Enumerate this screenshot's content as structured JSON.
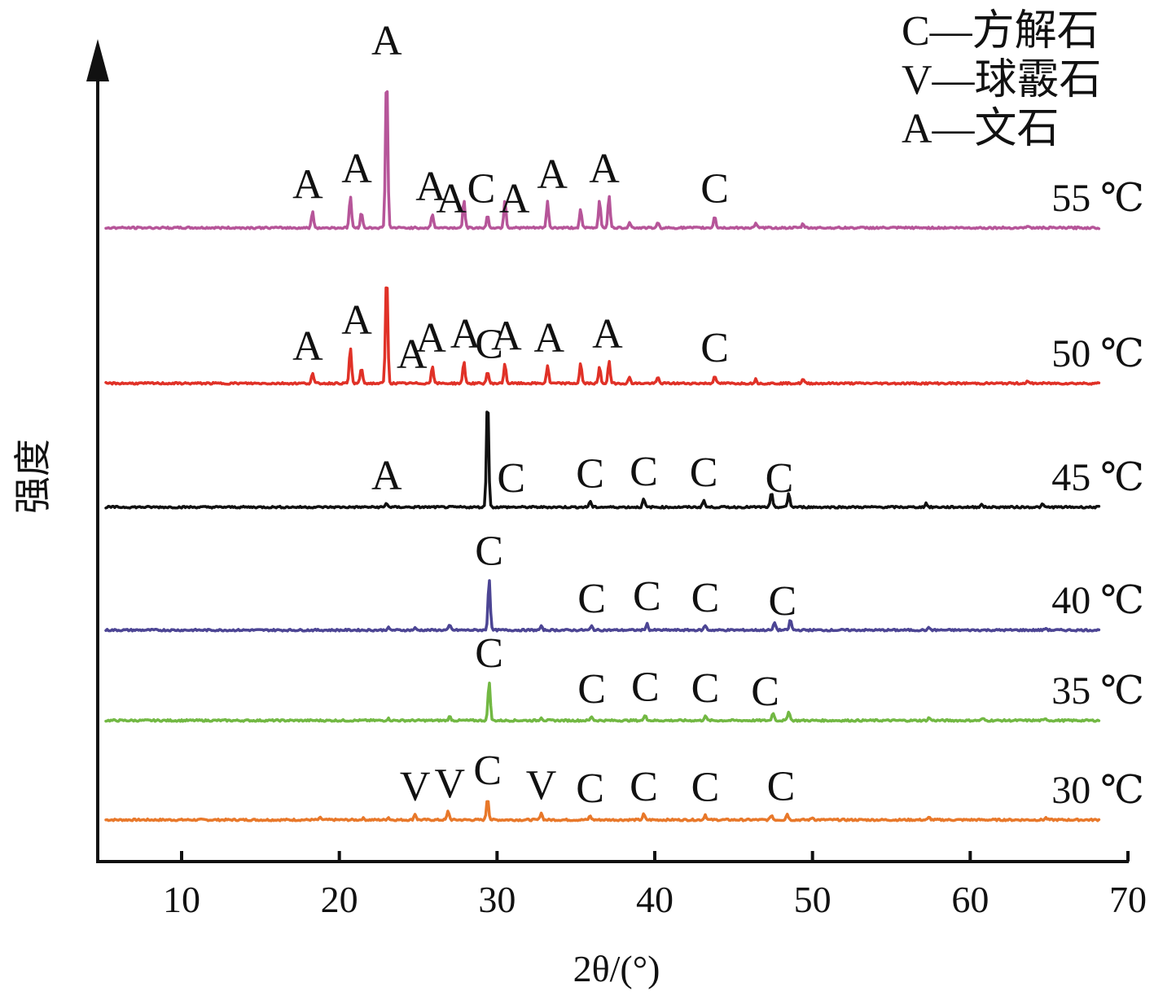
{
  "chart_data": {
    "type": "line",
    "title": "",
    "xlabel": "2θ/(°)",
    "ylabel": "强度",
    "xlim": [
      5,
      70
    ],
    "xticks": [
      10,
      20,
      30,
      40,
      50,
      60,
      70
    ],
    "legend": {
      "placement": "top-right",
      "entries": [
        "C—方解石",
        "V—球霰石",
        "A—文石"
      ]
    },
    "series": [
      {
        "name": "30 ℃",
        "color": "#e8782a",
        "peaks": [
          [
            18.8,
            0.5
          ],
          [
            21.5,
            0.4
          ],
          [
            23.1,
            0.6
          ],
          [
            24.8,
            1.5
          ],
          [
            26.9,
            2.2
          ],
          [
            29.4,
            5.5
          ],
          [
            32.8,
            1.8
          ],
          [
            35.9,
            1.0
          ],
          [
            39.3,
            1.4
          ],
          [
            43.2,
            1.3
          ],
          [
            47.4,
            1.2
          ],
          [
            48.4,
            1.5
          ],
          [
            50.0,
            0.6
          ],
          [
            57.4,
            0.6
          ],
          [
            64.8,
            0.5
          ]
        ],
        "labels": [
          {
            "x": 24.8,
            "text": "V"
          },
          {
            "x": 27.0,
            "text": "V"
          },
          {
            "x": 29.4,
            "text": "C"
          },
          {
            "x": 32.8,
            "text": "V"
          },
          {
            "x": 35.9,
            "text": "C"
          },
          {
            "x": 39.3,
            "text": "C"
          },
          {
            "x": 43.2,
            "text": "C"
          },
          {
            "x": 48.0,
            "text": "C"
          }
        ]
      },
      {
        "name": "35 ℃",
        "color": "#72b843",
        "peaks": [
          [
            23.1,
            0.5
          ],
          [
            27.0,
            1.0
          ],
          [
            29.5,
            10.0
          ],
          [
            32.8,
            0.8
          ],
          [
            36.0,
            1.0
          ],
          [
            39.4,
            1.5
          ],
          [
            43.2,
            1.2
          ],
          [
            47.5,
            2.0
          ],
          [
            48.5,
            2.4
          ],
          [
            57.4,
            0.7
          ],
          [
            60.8,
            0.5
          ],
          [
            64.8,
            0.5
          ]
        ],
        "labels": [
          {
            "x": 29.5,
            "text": "C"
          },
          {
            "x": 36.0,
            "text": "C"
          },
          {
            "x": 39.4,
            "text": "C"
          },
          {
            "x": 43.2,
            "text": "C"
          },
          {
            "x": 47.0,
            "text": "C"
          }
        ]
      },
      {
        "name": "40 ℃",
        "color": "#4c4594",
        "peaks": [
          [
            23.1,
            0.6
          ],
          [
            24.8,
            0.5
          ],
          [
            27.0,
            1.2
          ],
          [
            29.5,
            13.0
          ],
          [
            32.8,
            0.9
          ],
          [
            36.0,
            1.0
          ],
          [
            39.5,
            1.6
          ],
          [
            43.2,
            1.2
          ],
          [
            47.6,
            2.0
          ],
          [
            48.6,
            2.6
          ],
          [
            57.4,
            0.6
          ],
          [
            64.8,
            0.5
          ]
        ],
        "labels": [
          {
            "x": 29.5,
            "text": "C"
          },
          {
            "x": 36.0,
            "text": "C"
          },
          {
            "x": 39.5,
            "text": "C"
          },
          {
            "x": 43.2,
            "text": "C"
          },
          {
            "x": 48.1,
            "text": "C"
          }
        ]
      },
      {
        "name": "45 ℃",
        "color": "#111111",
        "peaks": [
          [
            23.0,
            1.0
          ],
          [
            29.4,
            28.0
          ],
          [
            35.9,
            1.5
          ],
          [
            39.3,
            2.0
          ],
          [
            43.1,
            1.8
          ],
          [
            47.4,
            3.5
          ],
          [
            48.5,
            3.5
          ],
          [
            57.2,
            1.0
          ],
          [
            60.7,
            0.8
          ],
          [
            64.6,
            0.7
          ]
        ],
        "labels": [
          {
            "x": 23.0,
            "text": "A"
          },
          {
            "x": 30.9,
            "text": "C"
          },
          {
            "x": 35.9,
            "text": "C"
          },
          {
            "x": 39.3,
            "text": "C"
          },
          {
            "x": 43.1,
            "text": "C"
          },
          {
            "x": 47.9,
            "text": "C"
          }
        ]
      },
      {
        "name": "50 ℃",
        "color": "#e03127",
        "peaks": [
          [
            18.3,
            2.5
          ],
          [
            20.7,
            9.0
          ],
          [
            21.4,
            4.0
          ],
          [
            23.0,
            28.0
          ],
          [
            25.9,
            4.5
          ],
          [
            27.9,
            5.5
          ],
          [
            29.4,
            3.0
          ],
          [
            30.5,
            5.0
          ],
          [
            33.2,
            4.5
          ],
          [
            35.3,
            5.0
          ],
          [
            36.5,
            4.0
          ],
          [
            37.1,
            5.5
          ],
          [
            38.4,
            1.5
          ],
          [
            40.2,
            1.5
          ],
          [
            43.8,
            2.0
          ],
          [
            46.4,
            1.0
          ],
          [
            49.4,
            1.0
          ],
          [
            63.6,
            0.5
          ]
        ],
        "labels": [
          {
            "x": 18.0,
            "text": "A"
          },
          {
            "x": 21.1,
            "text": "A"
          },
          {
            "x": 24.6,
            "text": "A"
          },
          {
            "x": 25.8,
            "text": "A"
          },
          {
            "x": 28.0,
            "text": "A"
          },
          {
            "x": 29.5,
            "text": "C"
          },
          {
            "x": 30.6,
            "text": "A"
          },
          {
            "x": 33.3,
            "text": "A"
          },
          {
            "x": 37.0,
            "text": "A"
          },
          {
            "x": 43.8,
            "text": "C"
          }
        ]
      },
      {
        "name": "55 ℃",
        "color": "#b65599",
        "peaks": [
          [
            18.3,
            4.0
          ],
          [
            20.7,
            8.0
          ],
          [
            21.4,
            4.0
          ],
          [
            23.0,
            40.0
          ],
          [
            25.9,
            3.5
          ],
          [
            27.9,
            7.0
          ],
          [
            29.4,
            3.0
          ],
          [
            30.5,
            7.0
          ],
          [
            33.2,
            6.5
          ],
          [
            35.3,
            4.5
          ],
          [
            36.5,
            7.0
          ],
          [
            37.1,
            8.0
          ],
          [
            38.4,
            1.5
          ],
          [
            40.2,
            1.2
          ],
          [
            43.8,
            3.0
          ],
          [
            46.4,
            1.0
          ],
          [
            49.4,
            1.0
          ],
          [
            63.6,
            0.5
          ]
        ],
        "labels": [
          {
            "x": 18.0,
            "text": "A"
          },
          {
            "x": 21.1,
            "text": "A"
          },
          {
            "x": 23.0,
            "text": "A"
          },
          {
            "x": 25.8,
            "text": "A"
          },
          {
            "x": 27.1,
            "text": "A"
          },
          {
            "x": 29.0,
            "text": "C"
          },
          {
            "x": 31.1,
            "text": "A"
          },
          {
            "x": 33.5,
            "text": "A"
          },
          {
            "x": 36.8,
            "text": "A"
          },
          {
            "x": 43.8,
            "text": "C"
          }
        ]
      }
    ]
  }
}
